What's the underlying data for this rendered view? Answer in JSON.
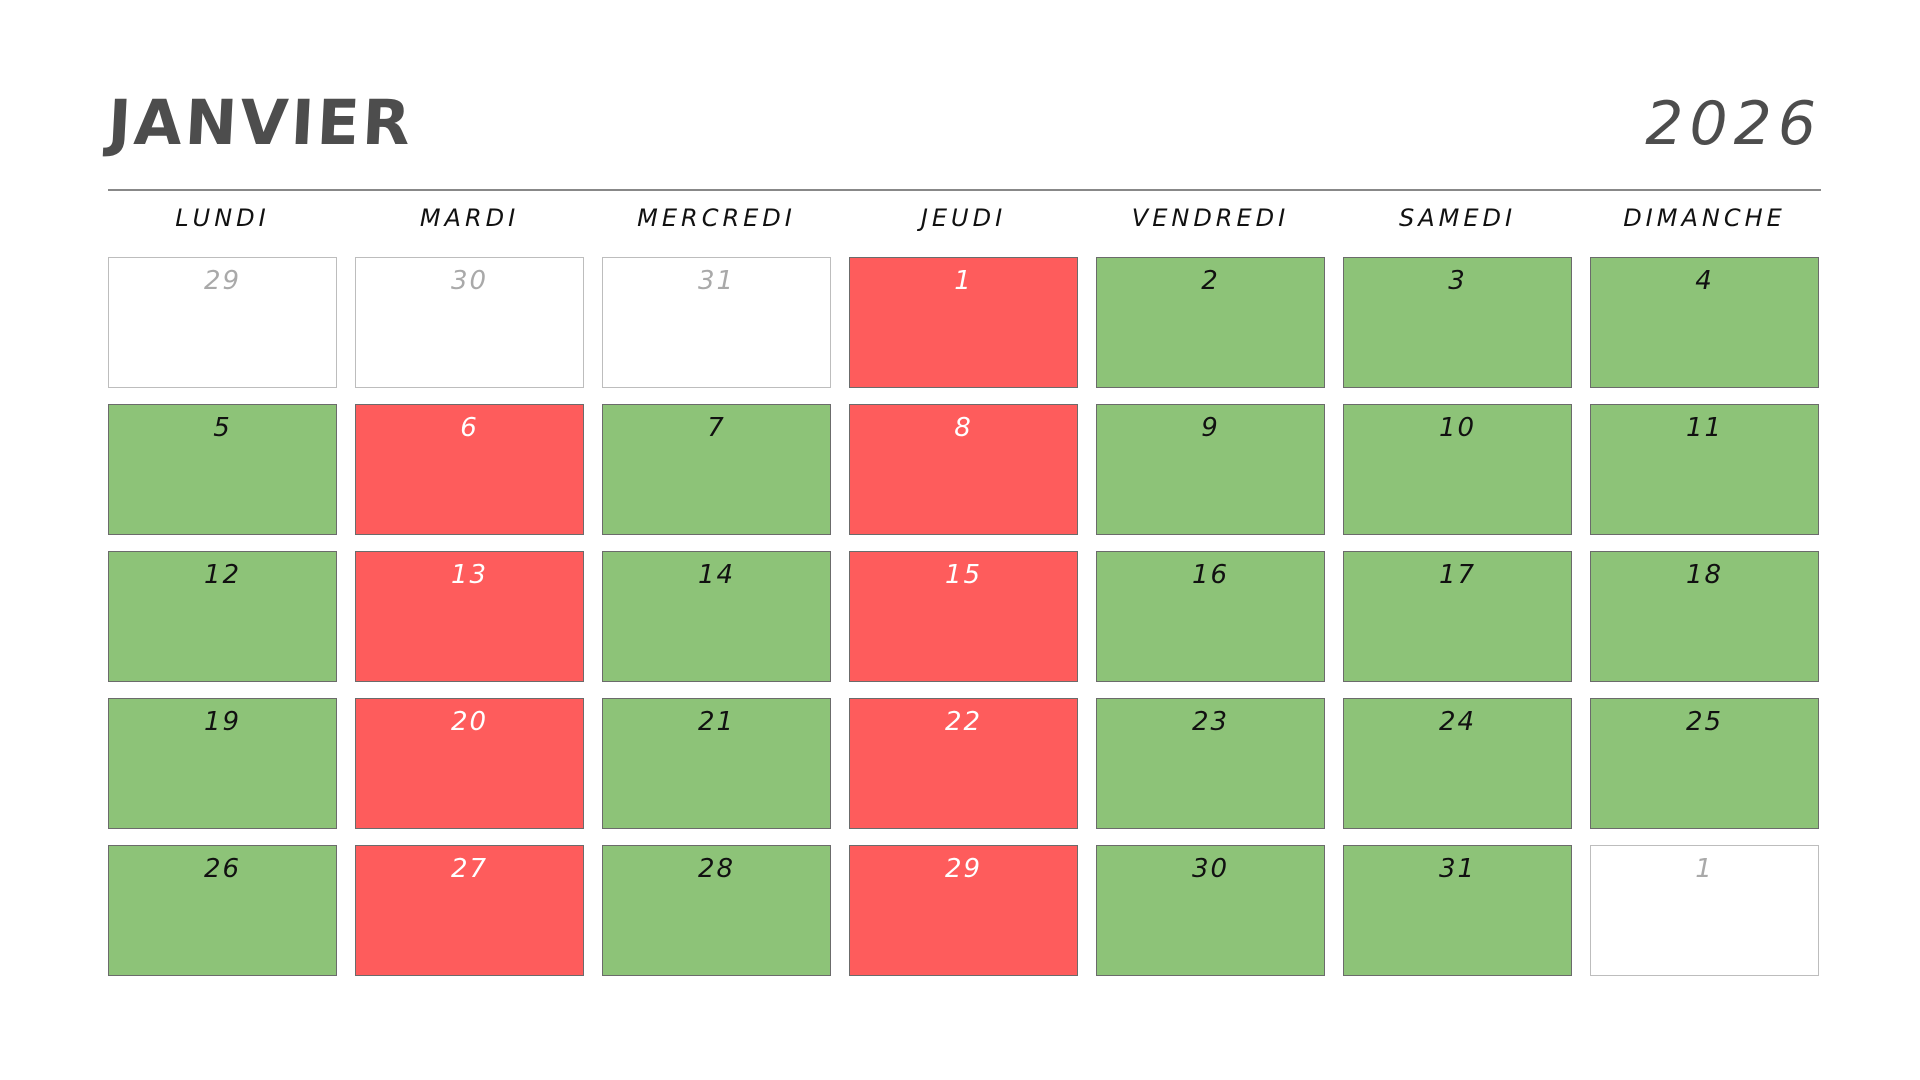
{
  "header": {
    "month": "JANVIER",
    "year": "2026"
  },
  "weekdays": [
    "LUNDI",
    "MARDI",
    "MERCREDI",
    "JEUDI",
    "VENDREDI",
    "SAMEDI",
    "DIMANCHE"
  ],
  "colors": {
    "green": "#8dc378",
    "red": "#fe5c5c",
    "outside": "#ffffff"
  },
  "days": [
    {
      "label": "29",
      "status": "empty"
    },
    {
      "label": "30",
      "status": "empty"
    },
    {
      "label": "31",
      "status": "empty"
    },
    {
      "label": "1",
      "status": "red"
    },
    {
      "label": "2",
      "status": "green"
    },
    {
      "label": "3",
      "status": "green"
    },
    {
      "label": "4",
      "status": "green"
    },
    {
      "label": "5",
      "status": "green"
    },
    {
      "label": "6",
      "status": "red"
    },
    {
      "label": "7",
      "status": "green"
    },
    {
      "label": "8",
      "status": "red"
    },
    {
      "label": "9",
      "status": "green"
    },
    {
      "label": "10",
      "status": "green"
    },
    {
      "label": "11",
      "status": "green"
    },
    {
      "label": "12",
      "status": "green"
    },
    {
      "label": "13",
      "status": "red"
    },
    {
      "label": "14",
      "status": "green"
    },
    {
      "label": "15",
      "status": "red"
    },
    {
      "label": "16",
      "status": "green"
    },
    {
      "label": "17",
      "status": "green"
    },
    {
      "label": "18",
      "status": "green"
    },
    {
      "label": "19",
      "status": "green"
    },
    {
      "label": "20",
      "status": "red"
    },
    {
      "label": "21",
      "status": "green"
    },
    {
      "label": "22",
      "status": "red"
    },
    {
      "label": "23",
      "status": "green"
    },
    {
      "label": "24",
      "status": "green"
    },
    {
      "label": "25",
      "status": "green"
    },
    {
      "label": "26",
      "status": "green"
    },
    {
      "label": "27",
      "status": "red"
    },
    {
      "label": "28",
      "status": "green"
    },
    {
      "label": "29",
      "status": "red"
    },
    {
      "label": "30",
      "status": "green"
    },
    {
      "label": "31",
      "status": "green"
    },
    {
      "label": "1",
      "status": "empty"
    }
  ]
}
